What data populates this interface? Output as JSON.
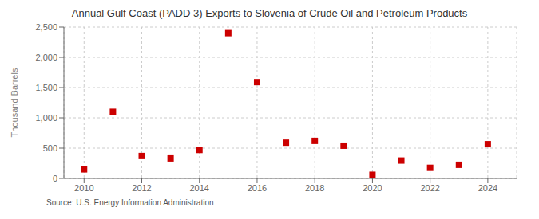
{
  "chart_data": {
    "type": "scatter",
    "title": "Annual Gulf Coast (PADD 3) Exports to Slovenia of Crude Oil and Petroleum Products",
    "ylabel": "Thousand Barrels",
    "annotations": [
      "Source: U.S. Energy Information Administration"
    ],
    "x": [
      2010,
      2011,
      2012,
      2013,
      2014,
      2015,
      2016,
      2017,
      2018,
      2019,
      2020,
      2021,
      2022,
      2023,
      2024
    ],
    "values": [
      150,
      1100,
      370,
      330,
      470,
      2400,
      1590,
      590,
      620,
      540,
      60,
      295,
      175,
      225,
      565
    ],
    "color": "#cc0000",
    "marker": "square",
    "xlim": [
      2009.3,
      2025.0
    ],
    "xticks": [
      2010,
      2012,
      2014,
      2016,
      2018,
      2020,
      2022,
      2024
    ],
    "ylim": [
      0,
      2500
    ],
    "yticks": [
      0,
      500,
      {
        "value": 1000,
        "label": "1,000"
      },
      {
        "value": 1500,
        "label": "1,500"
      },
      {
        "value": 2000,
        "label": "2,000"
      },
      {
        "value": 2500,
        "label": "2,500"
      }
    ],
    "grid": true
  }
}
